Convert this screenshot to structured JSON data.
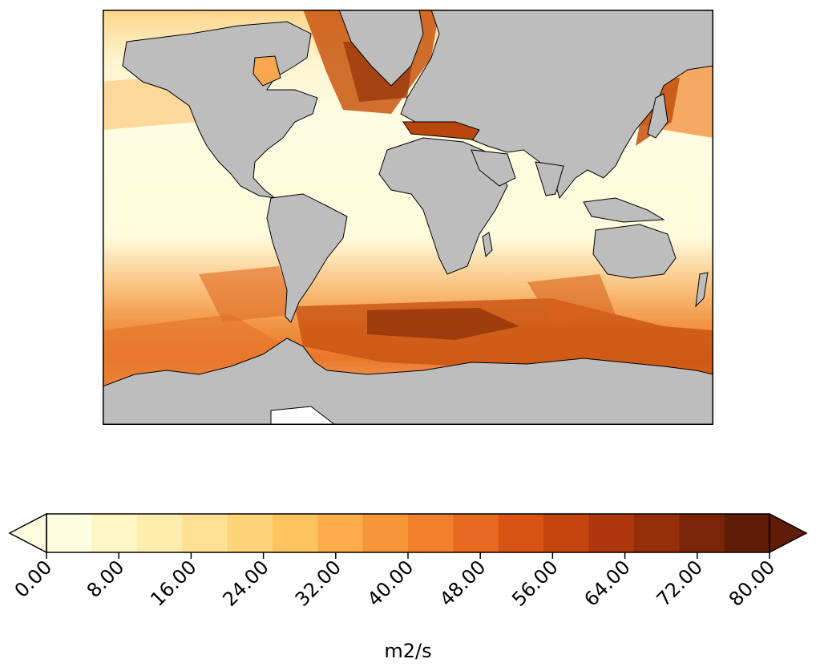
{
  "colorbar": {
    "unit": "m2/s",
    "ticks": [
      "0.00",
      "8.00",
      "16.00",
      "24.00",
      "32.00",
      "40.00",
      "48.00",
      "56.00",
      "64.00",
      "72.00",
      "80.00"
    ],
    "min": 0,
    "max": 80,
    "step": 5,
    "extend": "both",
    "bins": [
      "#fffde0",
      "#fff6c6",
      "#ffedae",
      "#ffe193",
      "#fed478",
      "#fdc35e",
      "#fcad4a",
      "#f8963a",
      "#f27f2b",
      "#e8691f",
      "#d85415",
      "#c5440e",
      "#ae380b",
      "#952e09",
      "#7a2508",
      "#5f1c06"
    ]
  },
  "map": {
    "land_color": "#bdbdbd",
    "coast_color": "#000000",
    "projection": "global",
    "antarctic_shelf_color": "#ffffff"
  }
}
